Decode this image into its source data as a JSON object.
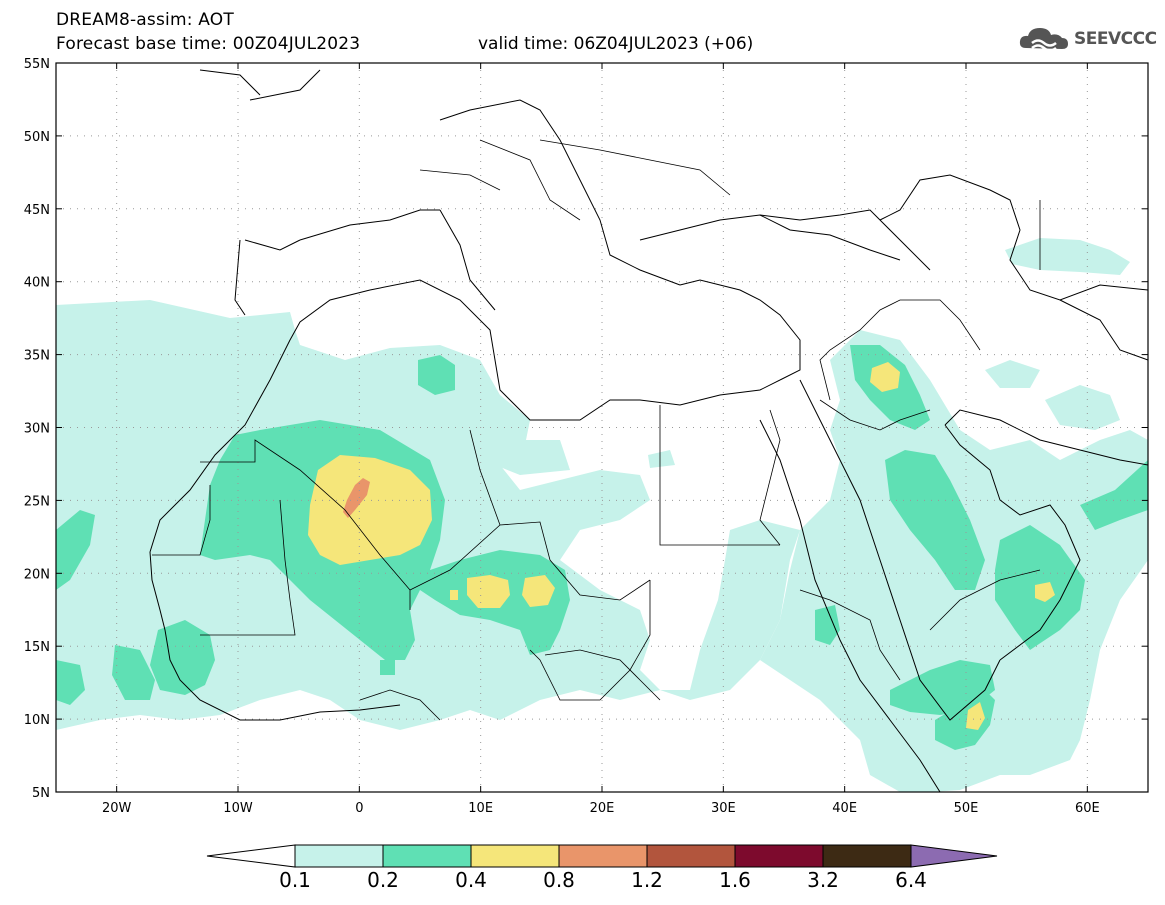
{
  "header": {
    "title": "DREAM8-assim: AOT",
    "base_time": "Forecast base time: 00Z04JUL2023",
    "valid_time": "valid time: 06Z04JUL2023 (+06)"
  },
  "logo": {
    "text": "SEEVCCC",
    "icon": "cloud-icon"
  },
  "map": {
    "lat_labels": [
      "55N",
      "50N",
      "45N",
      "40N",
      "35N",
      "30N",
      "25N",
      "20N",
      "15N",
      "10N",
      "5N"
    ],
    "lon_labels": [
      "20W",
      "10W",
      "0",
      "10E",
      "20E",
      "30E",
      "40E",
      "50E",
      "60E"
    ],
    "extent": {
      "lon_min": -25,
      "lon_max": 65,
      "lat_min": 5,
      "lat_max": 55
    },
    "grid": true
  },
  "colorbar": {
    "levels": [
      "0.1",
      "0.2",
      "0.4",
      "0.8",
      "1.2",
      "1.6",
      "3.2",
      "6.4"
    ],
    "colors": [
      "#c6f2ea",
      "#5fe0b4",
      "#f5e67a",
      "#e9956a",
      "#b2553d",
      "#7d0a2d",
      "#3d2a14"
    ],
    "over_color": "#8c6bb1",
    "under_color": "#ffffff"
  }
}
